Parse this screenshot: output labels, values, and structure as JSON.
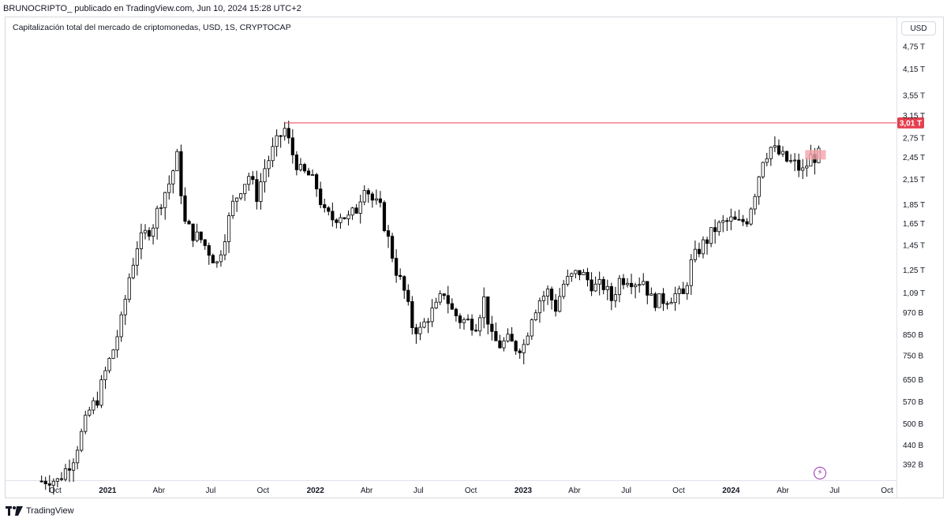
{
  "header": {
    "publisher": "BRUNOCRIPTO_ publicado en TradingView.com, Jun 10, 2024 15:28 UTC+2",
    "symbol": "Capitalización total del mercado de criptomonedas, USD, 1S, CRYPTOCAP"
  },
  "toolbar": {
    "currency": "USD"
  },
  "footer": {
    "brand": "TradingView"
  },
  "colors": {
    "up": "#ffffff",
    "down": "#000000",
    "wick": "#000000",
    "line": "#e5404f",
    "tag": "#e5404f",
    "highlight": "#f4a3a9"
  },
  "chart_data": {
    "type": "candlestick",
    "title": "Capitalización total del mercado de criptomonedas, USD, 1S, CRYPTOCAP",
    "unit": "USD",
    "y_scale": "log",
    "y_tick_labels": [
      "4,75 T",
      "4,15 T",
      "3,55 T",
      "3,15 T",
      "2,75 T",
      "2,45 T",
      "2,15 T",
      "1,85 T",
      "1,65 T",
      "1,45 T",
      "1,25 T",
      "1,09 T",
      "970 B",
      "850 B",
      "750 B",
      "650 B",
      "570 B",
      "500 B",
      "440 B",
      "392 B"
    ],
    "y_tick_values": [
      4750,
      4150,
      3550,
      3150,
      2750,
      2450,
      2150,
      1850,
      1650,
      1450,
      1250,
      1090,
      970,
      850,
      750,
      650,
      570,
      500,
      440,
      392
    ],
    "x_tick_labels": [
      "Oct",
      "2021",
      "Abr",
      "Jul",
      "Oct",
      "2022",
      "Abr",
      "Jul",
      "Oct",
      "2023",
      "Abr",
      "Jul",
      "Oct",
      "2024",
      "Abr",
      "Jul",
      "Oct"
    ],
    "x_tick_dates": [
      "2020-10-01",
      "2021-01-01",
      "2021-04-01",
      "2021-07-01",
      "2021-10-01",
      "2022-01-01",
      "2022-04-01",
      "2022-07-01",
      "2022-10-01",
      "2023-01-01",
      "2023-04-01",
      "2023-07-01",
      "2023-10-01",
      "2024-01-01",
      "2024-04-01",
      "2024-07-01",
      "2024-10-01"
    ],
    "year_labels": [
      "2021",
      "2022",
      "2023",
      "2024"
    ],
    "horizontal_line": {
      "value": 3010,
      "label": "3,01 T",
      "from_date": "2021-11-08"
    },
    "highlight_range": {
      "from_date": "2024-05-13",
      "to_date": "2024-06-10",
      "low": 2420,
      "high": 2560
    },
    "weekly_close_path": [
      [
        "2020-09-07",
        355
      ],
      [
        "2020-09-21",
        360
      ],
      [
        "2020-10-05",
        355
      ],
      [
        "2020-10-19",
        380
      ],
      [
        "2020-11-02",
        410
      ],
      [
        "2020-11-16",
        470
      ],
      [
        "2020-11-30",
        540
      ],
      [
        "2020-12-14",
        580
      ],
      [
        "2020-12-28",
        680
      ],
      [
        "2021-01-11",
        780
      ],
      [
        "2021-01-25",
        920
      ],
      [
        "2021-02-08",
        1200
      ],
      [
        "2021-02-22",
        1450
      ],
      [
        "2021-03-08",
        1550
      ],
      [
        "2021-03-22",
        1650
      ],
      [
        "2021-04-05",
        1900
      ],
      [
        "2021-04-19",
        2100
      ],
      [
        "2021-05-03",
        2450
      ],
      [
        "2021-05-17",
        1650
      ],
      [
        "2021-05-31",
        1550
      ],
      [
        "2021-06-14",
        1500
      ],
      [
        "2021-06-28",
        1400
      ],
      [
        "2021-07-12",
        1300
      ],
      [
        "2021-07-26",
        1550
      ],
      [
        "2021-08-09",
        1850
      ],
      [
        "2021-08-23",
        2050
      ],
      [
        "2021-09-06",
        2200
      ],
      [
        "2021-09-20",
        1950
      ],
      [
        "2021-10-04",
        2300
      ],
      [
        "2021-10-18",
        2550
      ],
      [
        "2021-11-01",
        2800
      ],
      [
        "2021-11-08",
        2900
      ],
      [
        "2021-11-22",
        2500
      ],
      [
        "2021-12-06",
        2250
      ],
      [
        "2021-12-20",
        2200
      ],
      [
        "2022-01-03",
        2050
      ],
      [
        "2022-01-17",
        1750
      ],
      [
        "2022-01-31",
        1700
      ],
      [
        "2022-02-14",
        1750
      ],
      [
        "2022-02-28",
        1700
      ],
      [
        "2022-03-14",
        1800
      ],
      [
        "2022-03-28",
        2100
      ],
      [
        "2022-04-11",
        1900
      ],
      [
        "2022-04-25",
        1800
      ],
      [
        "2022-05-09",
        1500
      ],
      [
        "2022-05-23",
        1250
      ],
      [
        "2022-06-06",
        1100
      ],
      [
        "2022-06-20",
        900
      ],
      [
        "2022-07-04",
        870
      ],
      [
        "2022-07-18",
        950
      ],
      [
        "2022-08-01",
        1000
      ],
      [
        "2022-08-15",
        1100
      ],
      [
        "2022-08-29",
        980
      ],
      [
        "2022-09-12",
        930
      ],
      [
        "2022-09-26",
        920
      ],
      [
        "2022-10-10",
        910
      ],
      [
        "2022-10-24",
        1050
      ],
      [
        "2022-11-07",
        830
      ],
      [
        "2022-11-21",
        800
      ],
      [
        "2022-12-05",
        820
      ],
      [
        "2022-12-19",
        790
      ],
      [
        "2023-01-02",
        800
      ],
      [
        "2023-01-16",
        960
      ],
      [
        "2023-01-30",
        1050
      ],
      [
        "2023-02-13",
        1100
      ],
      [
        "2023-02-27",
        1000
      ],
      [
        "2023-03-13",
        1150
      ],
      [
        "2023-03-27",
        1200
      ],
      [
        "2023-04-10",
        1240
      ],
      [
        "2023-04-24",
        1180
      ],
      [
        "2023-05-08",
        1130
      ],
      [
        "2023-05-22",
        1140
      ],
      [
        "2023-06-05",
        1050
      ],
      [
        "2023-06-19",
        1180
      ],
      [
        "2023-07-03",
        1200
      ],
      [
        "2023-07-17",
        1170
      ],
      [
        "2023-07-31",
        1180
      ],
      [
        "2023-08-14",
        1050
      ],
      [
        "2023-08-28",
        1040
      ],
      [
        "2023-09-11",
        1060
      ],
      [
        "2023-09-25",
        1080
      ],
      [
        "2023-10-09",
        1070
      ],
      [
        "2023-10-23",
        1300
      ],
      [
        "2023-11-06",
        1420
      ],
      [
        "2023-11-20",
        1500
      ],
      [
        "2023-12-04",
        1600
      ],
      [
        "2023-12-18",
        1650
      ],
      [
        "2024-01-01",
        1680
      ],
      [
        "2024-01-15",
        1650
      ],
      [
        "2024-01-29",
        1700
      ],
      [
        "2024-02-12",
        2000
      ],
      [
        "2024-02-26",
        2450
      ],
      [
        "2024-03-11",
        2600
      ],
      [
        "2024-03-25",
        2500
      ],
      [
        "2024-04-08",
        2400
      ],
      [
        "2024-04-22",
        2350
      ],
      [
        "2024-05-06",
        2250
      ],
      [
        "2024-05-20",
        2450
      ],
      [
        "2024-06-03",
        2480
      ]
    ]
  }
}
